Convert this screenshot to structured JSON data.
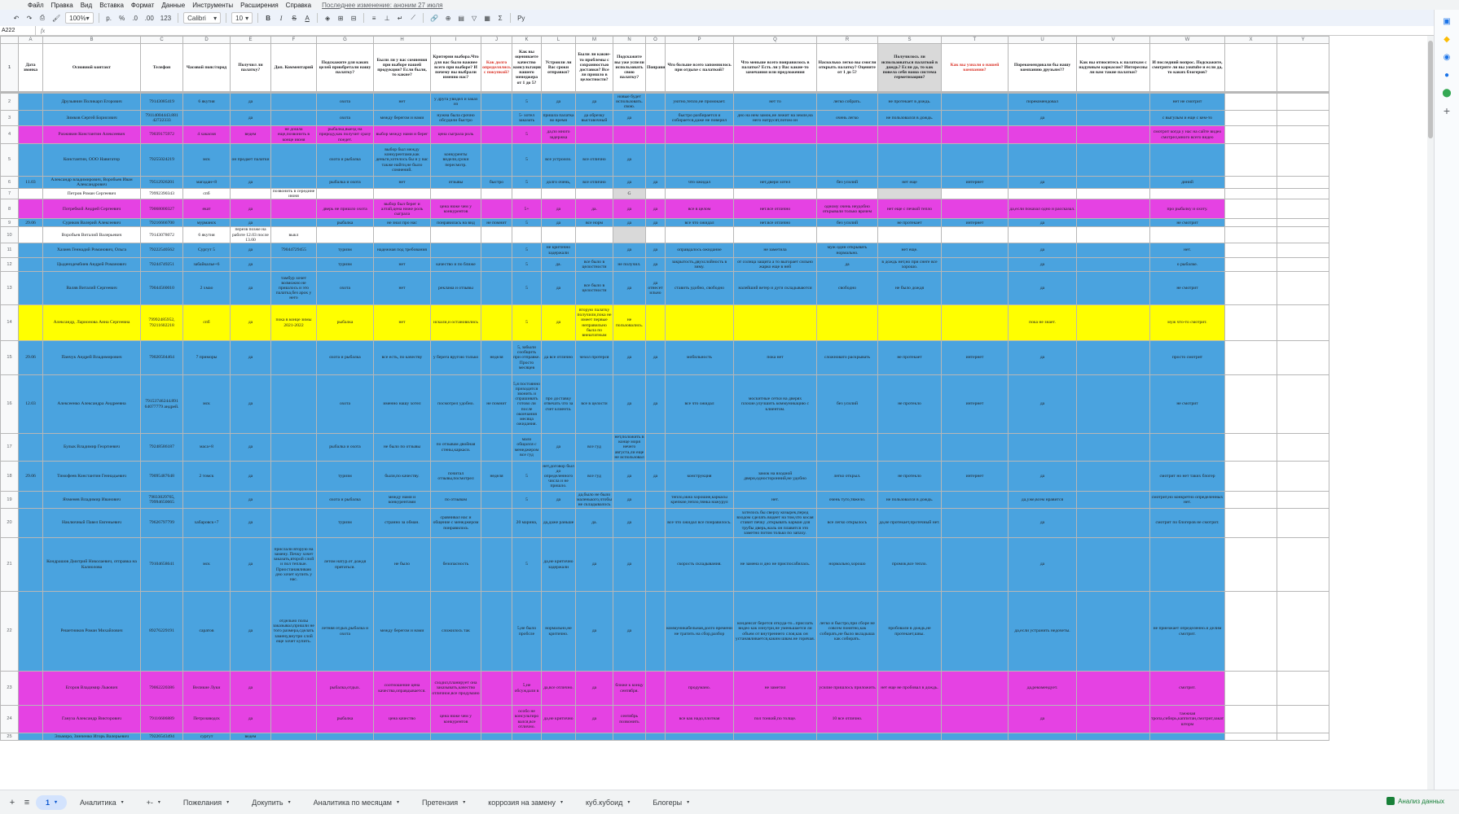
{
  "menu": {
    "items": [
      "Файл",
      "Правка",
      "Вид",
      "Вставка",
      "Формат",
      "Данные",
      "Инструменты",
      "Расширения",
      "Справка"
    ],
    "last_edit": "Последнее изменение: аноним 27 июля"
  },
  "toolbar": {
    "zoom": "100%",
    "currency": "р.",
    "percent": "%",
    "dec_minus": ".0",
    "dec_plus": ".00",
    "format_123": "123",
    "font": "Calibri",
    "size": "10",
    "bold": "B",
    "italic": "I",
    "strike": "S",
    "text_color": "A"
  },
  "formula_bar": {
    "cell_ref": "A222",
    "fx": "fx"
  },
  "columns": [
    "A",
    "B",
    "C",
    "D",
    "E",
    "F",
    "G",
    "H",
    "I",
    "J",
    "K",
    "L",
    "M",
    "N",
    "O",
    "P",
    "Q",
    "R",
    "S",
    "T",
    "U",
    "V",
    "W",
    "X",
    "Y"
  ],
  "header": [
    "Дата звонка",
    "Основной контакт",
    "Телефон",
    "Часовой пояс/город",
    "Получил ли палатку?",
    "Доп. Комментарий",
    "Подскажите для каких целей приобретали нашу палатку?",
    "Были ли у вас сомнения при выборе нашей продукции? Если были, то какие?",
    "Критерии выбора.Что для вас было важнее всего при выборе? И почему вы выбрали именно нас?",
    "Как долго определялись с покупкой?",
    "Как вы оцениваете качество консультации нашего менеджера от 1 до 5?",
    "Устроили ли Вас сроки отправки?",
    "Были ли какие-то проблемы с сохранностью доставки? Все ли пришло в целостности?",
    "Подскажите вы уже успели использовать свою палатку?",
    "Понравилась",
    "Что больше всего запомнилось при отдыхе с палаткой?",
    "Что меньше всего понравилось в палатке? Есть ли у Вас какие-то замечания или предложения",
    "Насколько легко вы смогли открыть палатку? Оцените от 1 до 5?",
    "Получилось ли использоваться палаткой в дождь? Если да, то как повела себя наша система герметизации?",
    "Как вы узнали о нашей компании?",
    "Порекомендовали бы нашу компанию друзьям??",
    "Как вы относитесь к палаткам с надувным каркасом? Интересны ли вам такие палатки?",
    "И последний вопрос. Подскажите, смотрите ли вы youtube и если да, то каких блогеров?",
    "",
    ""
  ],
  "rows": [
    {
      "n": "2",
      "color": "blue",
      "h": 22,
      "cells": [
        "",
        "Друзьянин Поликарп Егорович",
        "79143085419",
        "6 якутия",
        "да",
        "",
        "охота",
        "нет",
        "у друга увидел и заказ из",
        "",
        "5",
        "да",
        "да",
        "новые будет использовать. свою.",
        "",
        "уютно,тепло,не промокает.",
        "нет то",
        "легко собрать.",
        "не протекает в дождь.",
        "",
        "порекомендовал",
        "",
        "нет не смотрит",
        "",
        ""
      ]
    },
    {
      "n": "3",
      "color": "blue",
      "h": 19,
      "cells": [
        "",
        "Зимков Сергей Борисович",
        "79114004443.881 42722333",
        "",
        "да",
        "",
        "охота",
        "между берегом и нами",
        "нужна была срочно обсудили быстро",
        "",
        "5- хотел заказать",
        "пришла палатка во время",
        "да обрезку выставочный",
        "да",
        "",
        "быстро разбирается и собирается,даже не поверил",
        "дно на нем замок,не лежит на земле,на него натрусят,потом он",
        "очень легко",
        "не пользовался в дождь.",
        "",
        "да",
        "",
        "с выгулым и еще с кем-то",
        "",
        ""
      ]
    },
    {
      "n": "4",
      "color": "pink",
      "h": 22,
      "cells": [
        "",
        "Разживин Константин Алексеевич",
        "79039175972",
        "4 хакасия",
        "ведем",
        "не дошла еще,позвонить в конце июня",
        "рыбалка,выезд на природу,как получит сразу поедет.",
        "выбор между нами и берег",
        "цена сыграла роль",
        "",
        "5",
        "да,по много задержка",
        "",
        "",
        "",
        "",
        "",
        "",
        "",
        "",
        "",
        "",
        "смотрит когда у нас на сайте видео смотрел,много всего видео",
        "",
        ""
      ]
    },
    {
      "n": "5",
      "color": "blue",
      "h": 40,
      "cells": [
        "",
        "Константин, ООО Навигатор",
        "79255024219",
        "мск",
        "он продает палатки",
        "",
        "охота и рыбалка",
        "выбор был между конкурентами,как деньги,хотелось бы и у вас также найти,не было сомнений.",
        "конкуренты видели,сроки пересмотр.",
        "",
        "5",
        "все устроило.",
        "все отлично",
        "да",
        "",
        "",
        "",
        "",
        "",
        "",
        "",
        "",
        "",
        "",
        ""
      ]
    },
    {
      "n": "6",
      "color": "blue",
      "h": 15,
      "cells": [
        "11.03",
        "Александр владимирович, Воробьев Иван Александрович",
        "79512926201",
        "магадан+8",
        "да",
        "",
        "рыбалка и охота",
        "нет",
        "отзывы",
        "быстро",
        "5",
        "долго очень,",
        "все отлично",
        "да",
        "да",
        "что ожидал",
        "нет,двери хотел",
        "без усилий",
        "нет еще",
        "интернет",
        "да",
        "",
        "диний",
        "",
        ""
      ]
    },
    {
      "n": "7",
      "color": "white",
      "h": 13,
      "cells": [
        "",
        "Петров Роман Сергеевич",
        "79992390343",
        "спб",
        "",
        "позвонить в середине июня",
        "",
        "",
        "",
        "",
        "",
        "",
        "",
        "G",
        "",
        "",
        "",
        "",
        "",
        "",
        "",
        "",
        "",
        "",
        ""
      ]
    },
    {
      "n": "8",
      "color": "pink",
      "h": 24,
      "cells": [
        "",
        "Потребкой Андрей Сергеевич",
        "79068000327",
        "екат",
        "да",
        "",
        "дверь не пришло охота",
        "выбор был берег и алтай,цена ниже роль сыграла",
        "цена ниже чем у конкурентов",
        "",
        "5+",
        "да",
        "да.",
        "да",
        "да",
        "все в целом",
        "нет.все отлично",
        "одному очень неудобно открывали только врачем",
        "нет еще с печкой тепло",
        "",
        "да,если показал одно и рассказал.",
        "",
        "про рыбалку и охоту.",
        "",
        ""
      ]
    },
    {
      "n": "9",
      "color": "blue",
      "h": 10,
      "cells": [
        "29.06",
        "Сурнков Валерий Алексеевич",
        "79216666700",
        "мурманск",
        "да",
        "",
        "рыбалка",
        "не знал про нас",
        "понравилась на вид",
        "не помнит",
        "5",
        "да",
        "все норм",
        "да",
        "да",
        "все что ожидал",
        "нет.все отлично",
        "без усилий",
        "не протекает",
        "интернет",
        "да",
        "",
        "не смотрит",
        "",
        ""
      ]
    },
    {
      "n": "10",
      "color": "white",
      "h": 19,
      "cells": [
        "",
        "Воробьев Виталий Валерьевич",
        "79143078072",
        "6 якутия",
        "перезв позже на работе 12.03 после 13.00",
        "выкл",
        "",
        "",
        "",
        "",
        "",
        "",
        "",
        "",
        "",
        "",
        "",
        "",
        "",
        "",
        "",
        "",
        "",
        "",
        ""
      ]
    },
    {
      "n": "11",
      "color": "blue",
      "h": 18,
      "cells": [
        "",
        "Хазиев Геннадий Романович, Ольга",
        "79222540562",
        "Сургут 5",
        "да",
        "79044729455",
        "туризм",
        "надежная под требования",
        "",
        "",
        "5",
        "не критично задержали",
        "",
        "да",
        "да",
        "оправдалось ожидание",
        "не заметила",
        "муж один открывать нормально.",
        "нет еще.",
        "",
        "да",
        "",
        "нет.",
        "",
        ""
      ]
    },
    {
      "n": "12",
      "color": "blue",
      "h": 17,
      "cells": [
        "",
        "Цыденздембиев Андрей Романович",
        "79244749251",
        "забайкалье+6",
        "да",
        "",
        "туризм",
        "нет",
        "качество и по ближе",
        "",
        "5",
        "да.",
        "все было в целостности",
        "не получил.",
        "да",
        "закрытость,двухслойность в зиму.",
        "от солнца защита а то выгорает сильно жарко еще в ней",
        "да",
        "в дождь нет,но при снеге все хорошо.",
        "",
        "да",
        "",
        "о рыбалке.",
        "",
        ""
      ]
    },
    {
      "n": "13",
      "color": "blue",
      "h": 41,
      "cells": [
        "",
        "Валяв Виталий Сергеевич",
        "79044560010",
        "2 хмао",
        "да",
        "тамбур хочет возможно не пришлось и это палатка,без арок у него",
        "охота",
        "нет",
        "реклама и отзывы",
        "",
        "5",
        "да",
        "все было в целостности",
        "да",
        "да отнесет ильно",
        "ставить удобно, свободно",
        "налейший ветер и дуги складываются",
        "свободно",
        "не было дождя",
        "",
        "да",
        "",
        "не смотрит",
        "",
        ""
      ]
    },
    {
      "n": "14",
      "color": "yellow",
      "h": 44,
      "cells": [
        "",
        "Александр, Ларионова Анна Сергеевна",
        "79992485952, 79211602218",
        "спб",
        "да",
        "пока в конце зимы 2021-2022",
        "рыбалка",
        "нет",
        "искали,и остановились",
        "",
        "5",
        "да",
        "вторую палатку получили,пока не имеет первые неправильно была по внештатным",
        "не пользовались.",
        "",
        "",
        "",
        "",
        "",
        "",
        "пока не знает.",
        "",
        "муж что-то смотрит.",
        "",
        ""
      ]
    },
    {
      "n": "15",
      "color": "blue",
      "h": 42,
      "cells": [
        "29.06",
        "Панчук Андрей Владимирович",
        "79020504464",
        "7 приморы",
        "да",
        "",
        "охота и рыбалка",
        "все есть, по качеству",
        "у берега вругою только",
        "неделя",
        "5, забыли сообщить при отправке. Просто месяцев",
        "да все отлично",
        "чехол протерся",
        "да",
        "да",
        "мобильность",
        "пока нет",
        "сложноватo раскрывать",
        "не протекает",
        "интернет",
        "да",
        "",
        "просто смотрит",
        "",
        ""
      ]
    },
    {
      "n": "16",
      "color": "blue",
      "h": 72,
      "cells": [
        "12.03",
        "Алексеенко Александра Андреевна",
        "79153746244.891 64077779 андрей.",
        "мск",
        "да",
        "",
        "охота",
        "именно нашу хотел",
        "посмотрел удобно.",
        "не помнит",
        "5,я постоянно приходится звонить и спрашивать готово ли после окончания месяца ожидания.",
        "про доставку отвечать что за счет клиента.",
        "все в целости",
        "да",
        "да",
        "все что ожидал",
        "москитные сетки на дверях плохие.улучшить коммуникацию с клиентом.",
        "без усилий",
        "не протекло",
        "интернет",
        "да",
        "",
        "не смотрит",
        "",
        ""
      ]
    },
    {
      "n": "17",
      "color": "blue",
      "h": 34,
      "cells": [
        "",
        "Булык Владимир Георгиевич",
        "79248586187",
        "маса+8",
        "да",
        "",
        "рыбалка и охота",
        "не было по отзывы",
        "по отзывам двойная стены,каркаси.",
        "",
        "мало общался с менеджером все гуд",
        "да",
        "все гуд",
        "нет,положить в конце моря нечего августа,ли еще не использовал",
        "",
        "",
        "",
        "",
        "",
        "",
        "",
        "",
        "",
        "",
        ""
      ]
    },
    {
      "n": "18",
      "color": "blue",
      "h": 37,
      "cells": [
        "29.06",
        "Тимофеев Константин Геннадьевич",
        "79095487648",
        "2 томск",
        "да",
        "",
        "туризм",
        "были,по качеству.",
        "почитал отзывы,посмотрел",
        "неделя",
        "5",
        "нет,договор был до определенного числа и не пришло.",
        "все гуд",
        "да",
        "да",
        "конструкция",
        "замок на входной двери,односторонний,не удобно",
        "легко открыл.",
        "не протекло",
        "интернет",
        "да",
        "",
        "смотрит но нет таких блогер",
        "",
        ""
      ]
    },
    {
      "n": "19",
      "color": "blue",
      "h": 21,
      "cells": [
        "",
        "Ячменев Владимир Иванович",
        "79833029765, 79994650665",
        "",
        "да",
        "",
        "охота и рыбалка",
        "между нами и конкурентами",
        "по отзывам",
        "",
        "5",
        "да",
        "да,было не было маленького,чтобы не складывалось",
        "да",
        "",
        "тепло,окна хорошие,каркасы крепкие,тепло,тянка нажурул",
        "нет.",
        "очень туго,тяжело.",
        "не пользовался в дождь.",
        "",
        "да,уже,всем нравится",
        "",
        "смотрит,но конкретно определенных нет.",
        "",
        ""
      ]
    },
    {
      "n": "20",
      "color": "blue",
      "h": 36,
      "cells": [
        "",
        "Наключный Павел Евгеньевич",
        "79626797799",
        "хабаровск+7",
        "да",
        "",
        "туризм",
        "странно за обман.",
        "сравнивал нас и общение с менеджером понравилось",
        "",
        "20 марина,",
        "да,даже раньше",
        "да.",
        "да",
        "",
        "все что ожидал все понравилось.",
        "хотелось бы сверху козырек,перед входом сделать видеет на том,что косая ставит печку ,открывать карман для трубы дверь,жаль он плавится это заметно потом только по запаху.",
        "все легко открылось",
        "да,не протекает,протечный нет.",
        "",
        "да",
        "",
        "смотрит по блогеров не смотрит.",
        "",
        ""
      ]
    },
    {
      "n": "21",
      "color": "blue",
      "h": 66,
      "cells": [
        "",
        "Кондрашов Дмитрий Николаевич, отправка на Калиолова",
        "79104658641",
        "мск",
        "да",
        "прислали вторую на замену. Печку хочет заказать,второй слой и пол теплые. Приостанавливаю дно хочет купить у нас.",
        "летом натур.от дождя прятаться.",
        "не было",
        "безопасность",
        "",
        "5",
        "да,не критично задержали",
        "да",
        "да",
        "",
        "скорость складывания.",
        "не замена и дно не приспосабилась.",
        "нормально,хорошо",
        "промок,все тепло.",
        "",
        "да",
        "",
        "",
        "",
        ""
      ]
    },
    {
      "n": "22",
      "color": "blue",
      "h": 98,
      "cells": [
        "",
        "Решетников Роман Михайлович",
        "89276229191",
        "саратов",
        "да",
        "отдельно полы заказывал,пришли не того размера,сделать замену,внутри слой еще хочет купить.",
        "летняя отдых,рыбалка и охота",
        "между берегом и нами",
        "сложилось так",
        "",
        "5,не было пробсле",
        "нормально,не критично.",
        "да",
        "да",
        "",
        "коммуникабельная,долго времени не тратить на сбор,разбор",
        "конденсат берется откуда-то...прислать видео как изнутри,не уменьшается ли объем от внутреннего слоя,как он устанавливается,каким швам.не горячая.",
        "легко и быстро,при сборе не совсем понятно,как собирать,не было вкладыша как собирать.",
        "пробовали в дождь,не протекает,швы.",
        "",
        "да,если устранить недочеты.",
        "",
        "не приезжает определенно.и делим смотрит.",
        "",
        ""
      ]
    },
    {
      "n": "23",
      "color": "pink",
      "h": 42,
      "cells": [
        "",
        "Егоров Владимир Львович",
        "79062220386",
        "Великие Луки",
        "да",
        "",
        "рыбалка,отдых.",
        "соотношение цена качества,оправдывается.",
        "сходил,планирует она заказывать,качество отличное,все продумано",
        "",
        "5,не обсуждали в",
        "да,все отлично.",
        "да",
        "ближе к концу сентября.",
        "",
        "продумано.",
        "не заметил",
        "усилие пришлось приложить",
        "нет еще не пробовал в дождь.",
        "",
        "да,рекомендует.",
        "",
        "смотрит.",
        "",
        ""
      ]
    },
    {
      "n": "24",
      "color": "pink",
      "h": 34,
      "cells": [
        "",
        "Гануза Александр Викторович",
        "79116606889",
        "Петрозаводск",
        "да",
        "",
        "рыбалка",
        "цена качество",
        "цена ниже чем у конкурентов",
        "",
        "особо не консультиро вался,все отлично.",
        "да,не критично",
        "да",
        "сентябрь позвонить",
        "",
        "все как надо,плотная",
        "пол тонкий,по толще.",
        "10 все отлично.",
        "",
        "",
        "да",
        "",
        "таежная тропа,сибирь,каппитан,смотрит,закат шторм",
        "",
        ""
      ]
    },
    {
      "n": "25",
      "color": "blue",
      "h": 9,
      "cells": [
        "",
        "Эльмиро, Зинченко Игорь Валерьевич",
        "79226543494",
        "сургут",
        "ведем",
        "",
        "",
        "",
        "",
        "",
        "",
        "",
        "",
        "",
        "",
        "",
        "",
        "",
        "",
        "",
        "",
        "",
        "",
        "",
        ""
      ]
    }
  ],
  "tabs": [
    "1",
    "Аналитика",
    "+-",
    "Пожелания",
    "Докупить",
    "Аналитика по месяцам",
    "Претензия",
    "коррозия на замену",
    "куб.кубоид",
    "Блогеры"
  ],
  "active_tab": "1",
  "explore_label": "Анализ данных",
  "colors": {
    "blue": "#4aa3df",
    "pink": "#e542e3",
    "yellow": "#ffff00",
    "grey": "#d9d9d9"
  }
}
